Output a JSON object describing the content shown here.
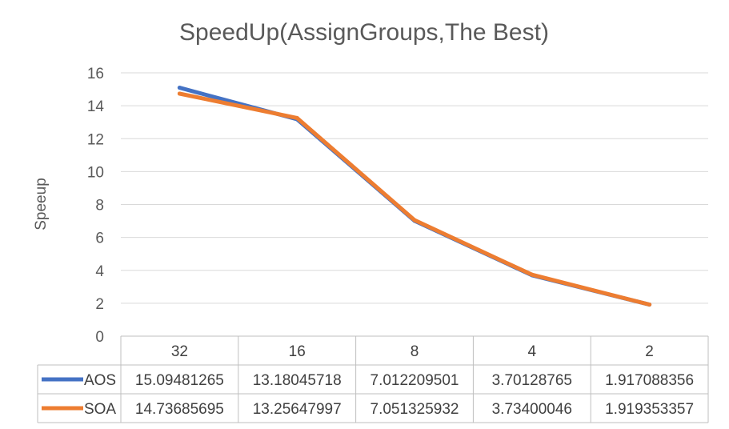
{
  "chart_data": {
    "type": "line",
    "title": "SpeedUp(AssignGroups,The Best)",
    "xlabel": "",
    "ylabel": "Speeup",
    "ylim": [
      0,
      16
    ],
    "yticks": [
      0,
      2,
      4,
      6,
      8,
      10,
      12,
      14,
      16
    ],
    "categories": [
      "32",
      "16",
      "8",
      "4",
      "2"
    ],
    "grid": true,
    "legend": "data-table",
    "series": [
      {
        "name": "AOS",
        "color": "#4472c4",
        "values": [
          15.09481265,
          13.18045718,
          7.012209501,
          3.70128765,
          1.917088356
        ],
        "labels": [
          "15.09481265",
          "13.18045718",
          "7.012209501",
          "3.70128765",
          "1.917088356"
        ]
      },
      {
        "name": "SOA",
        "color": "#ed7d31",
        "values": [
          14.73685695,
          13.25647997,
          7.051325932,
          3.73400046,
          1.919353357
        ],
        "labels": [
          "14.73685695",
          "13.25647997",
          "7.051325932",
          "3.73400046",
          "1.919353357"
        ]
      }
    ]
  }
}
